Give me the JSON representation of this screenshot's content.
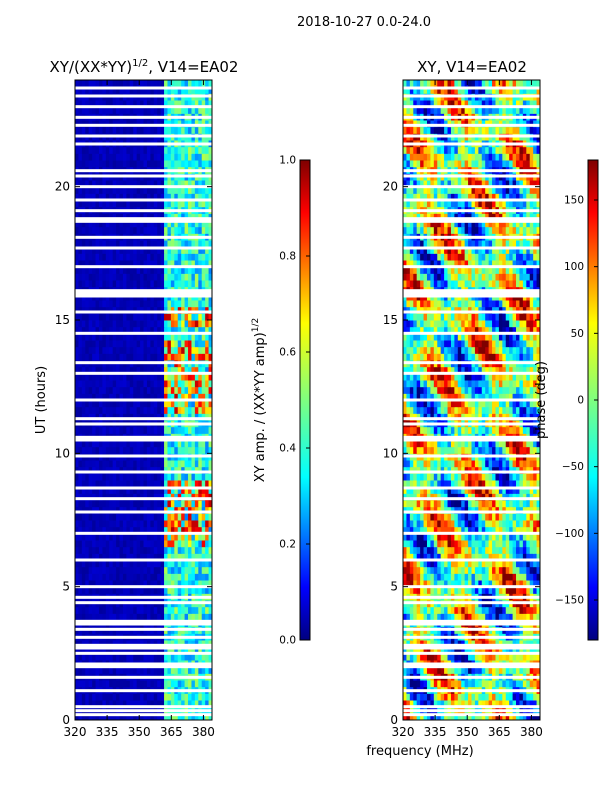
{
  "suptitle": "2018-10-27 0.0-24.0",
  "colors": {
    "jet": [
      "#00007f",
      "#0000ff",
      "#007fff",
      "#00ffff",
      "#7fff7f",
      "#ffff00",
      "#ff7f00",
      "#ff0000",
      "#7f0000"
    ],
    "gap": "#ffffff",
    "axis": "#000000"
  },
  "shared": {
    "xlabel": "frequency (MHz)",
    "ylabel": "UT (hours)",
    "xlim": [
      320,
      384
    ],
    "ylim": [
      0,
      24
    ],
    "xticks": [
      320,
      335,
      350,
      365,
      380
    ],
    "yticks": [
      0,
      5,
      10,
      15,
      20
    ]
  },
  "chart_data": [
    {
      "type": "heatmap",
      "title": "XY/(XX*YY)",
      "title_sup": "1/2",
      "title_suffix": ", V14=EA02",
      "xlabel": "frequency (MHz)",
      "ylabel": "UT (hours)",
      "xlim": [
        320,
        384
      ],
      "ylim": [
        0,
        24
      ],
      "colorbar": {
        "label": "XY amp. / (XX*YY amp)",
        "label_sup": "1/2",
        "range": [
          0.0,
          1.0
        ],
        "ticks": [
          "0.0",
          "0.2",
          "0.4",
          "0.6",
          "0.8",
          "1.0"
        ]
      },
      "regions": [
        {
          "freq": [
            320,
            361
          ],
          "level": 0.05
        },
        {
          "freq": [
            361,
            384
          ],
          "level": 0.4
        }
      ],
      "high_bands_utc": [
        [
          6.5,
          9.0
        ],
        [
          11.5,
          14.2
        ],
        [
          14.8,
          15.5
        ]
      ],
      "gap_hours": [
        0.2,
        0.35,
        0.5,
        1.1,
        1.6,
        2.0,
        2.1,
        2.5,
        2.7,
        2.8,
        3.1,
        3.4,
        3.6,
        3.7,
        4.4,
        4.6,
        5.0,
        6.0,
        7.0,
        7.8,
        8.3,
        8.7,
        9.3,
        9.9,
        10.5,
        10.6,
        11.1,
        11.3,
        12.0,
        13.0,
        13.4,
        14.5,
        15.3,
        15.9,
        16.0,
        16.1,
        17.0,
        17.7,
        18.1,
        18.7,
        18.8,
        19.1,
        19.5,
        20.0,
        20.4,
        20.6,
        21.6,
        21.9,
        22.3,
        22.6,
        23.0,
        23.4,
        23.7
      ]
    },
    {
      "type": "heatmap",
      "title": "XY, V14=EA02",
      "xlabel": "frequency (MHz)",
      "ylabel": "",
      "xlim": [
        320,
        384
      ],
      "ylim": [
        0,
        24
      ],
      "colorbar": {
        "label": "phase (deg)",
        "range": [
          -180,
          180
        ],
        "ticks": [
          "−150",
          "−100",
          "−50",
          "0",
          "50",
          "100",
          "150"
        ]
      },
      "description_values": "phase varies between -180 and 180 deg",
      "gap_hours": [
        0.2,
        0.35,
        0.5,
        1.1,
        1.6,
        2.0,
        2.1,
        2.5,
        2.7,
        2.8,
        3.1,
        3.4,
        3.6,
        3.7,
        4.4,
        4.6,
        5.0,
        6.0,
        7.0,
        7.8,
        8.3,
        8.7,
        9.3,
        9.9,
        10.5,
        10.6,
        11.1,
        11.3,
        12.0,
        13.0,
        13.4,
        14.5,
        15.3,
        15.9,
        16.0,
        16.1,
        17.0,
        17.7,
        18.1,
        18.7,
        18.8,
        19.1,
        19.5,
        20.0,
        20.4,
        20.6,
        21.6,
        21.9,
        22.3,
        22.6,
        23.0,
        23.4,
        23.7
      ]
    }
  ]
}
